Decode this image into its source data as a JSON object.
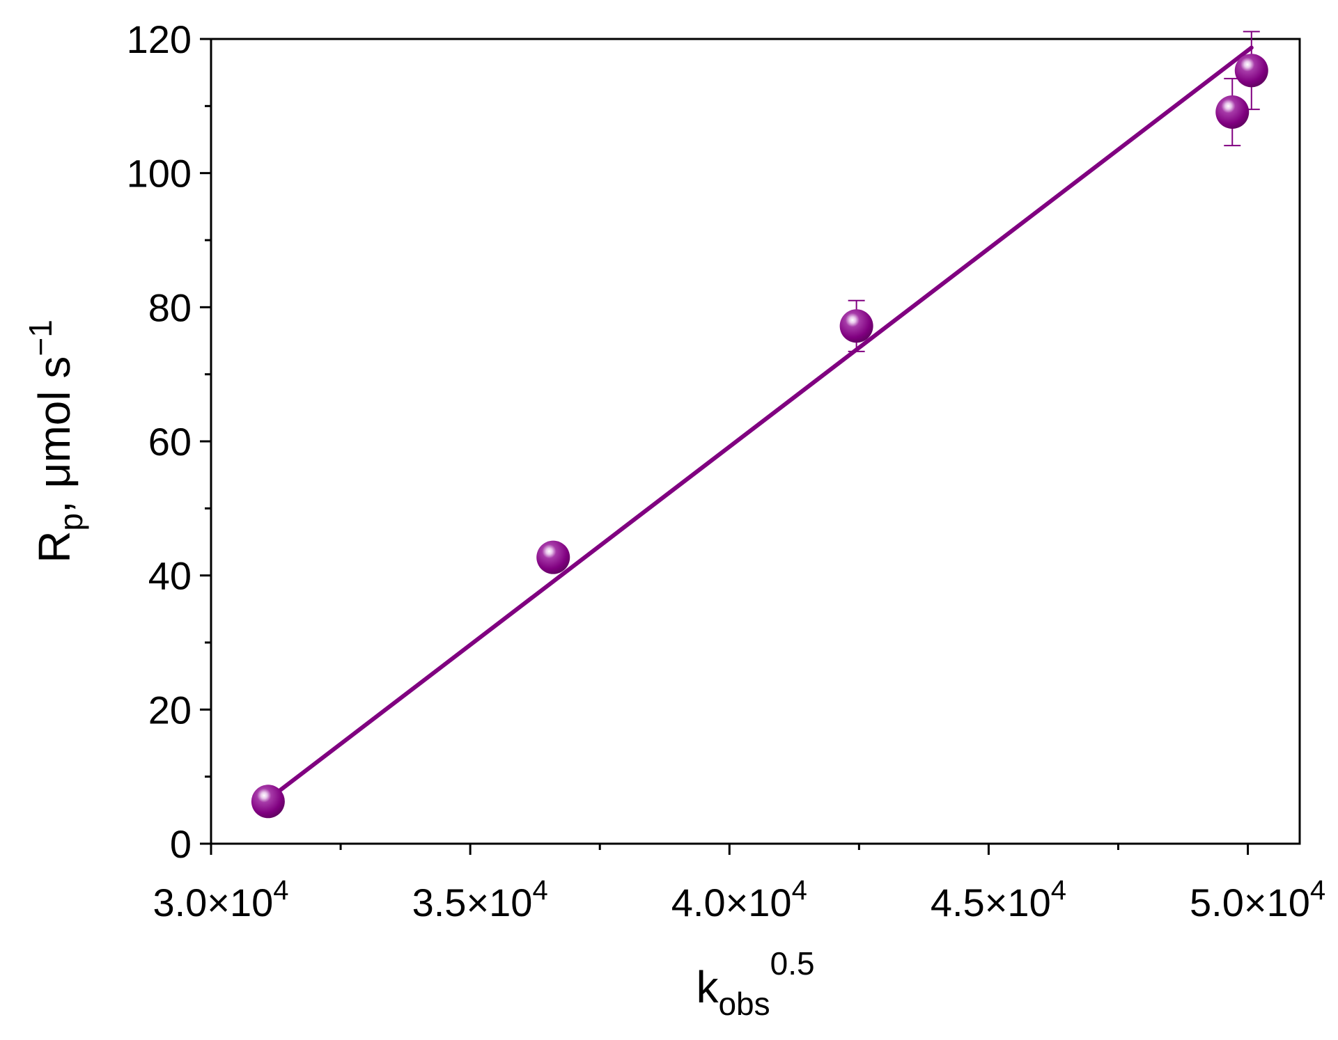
{
  "chart_data": {
    "type": "scatter",
    "title": "",
    "xlabel": {
      "base": "k",
      "sub": "obs",
      "sup": "0.5"
    },
    "ylabel": {
      "base": "R",
      "sub": "p",
      "rest": ", μmol s",
      "sup": "−1"
    },
    "xlim": [
      30000,
      51000
    ],
    "ylim": [
      0,
      120
    ],
    "x_ticks": [
      30000,
      35000,
      40000,
      45000,
      50000
    ],
    "x_tick_labels": [
      {
        "mantissa": "3.0×10",
        "exp": "4"
      },
      {
        "mantissa": "3.5×10",
        "exp": "4"
      },
      {
        "mantissa": "4.0×10",
        "exp": "4"
      },
      {
        "mantissa": "4.5×10",
        "exp": "4"
      },
      {
        "mantissa": "5.0×10",
        "exp": "4"
      }
    ],
    "y_ticks": [
      0,
      20,
      40,
      60,
      80,
      100,
      120
    ],
    "y_tick_labels": [
      "0",
      "20",
      "40",
      "60",
      "80",
      "100",
      "120"
    ],
    "grid": false,
    "series": [
      {
        "color": "#800080",
        "points": [
          {
            "x": 31100,
            "y": 6.3,
            "err": 0.8
          },
          {
            "x": 36600,
            "y": 42.7,
            "err": 1.0
          },
          {
            "x": 42450,
            "y": 77.2,
            "err": 3.8
          },
          {
            "x": 49700,
            "y": 109.1,
            "err": 5.0
          },
          {
            "x": 50070,
            "y": 115.3,
            "err": 5.8
          }
        ]
      }
    ],
    "fit_line": {
      "color": "#800080",
      "x": [
        31100,
        50070
      ],
      "y": [
        6.6,
        118.7
      ]
    }
  }
}
